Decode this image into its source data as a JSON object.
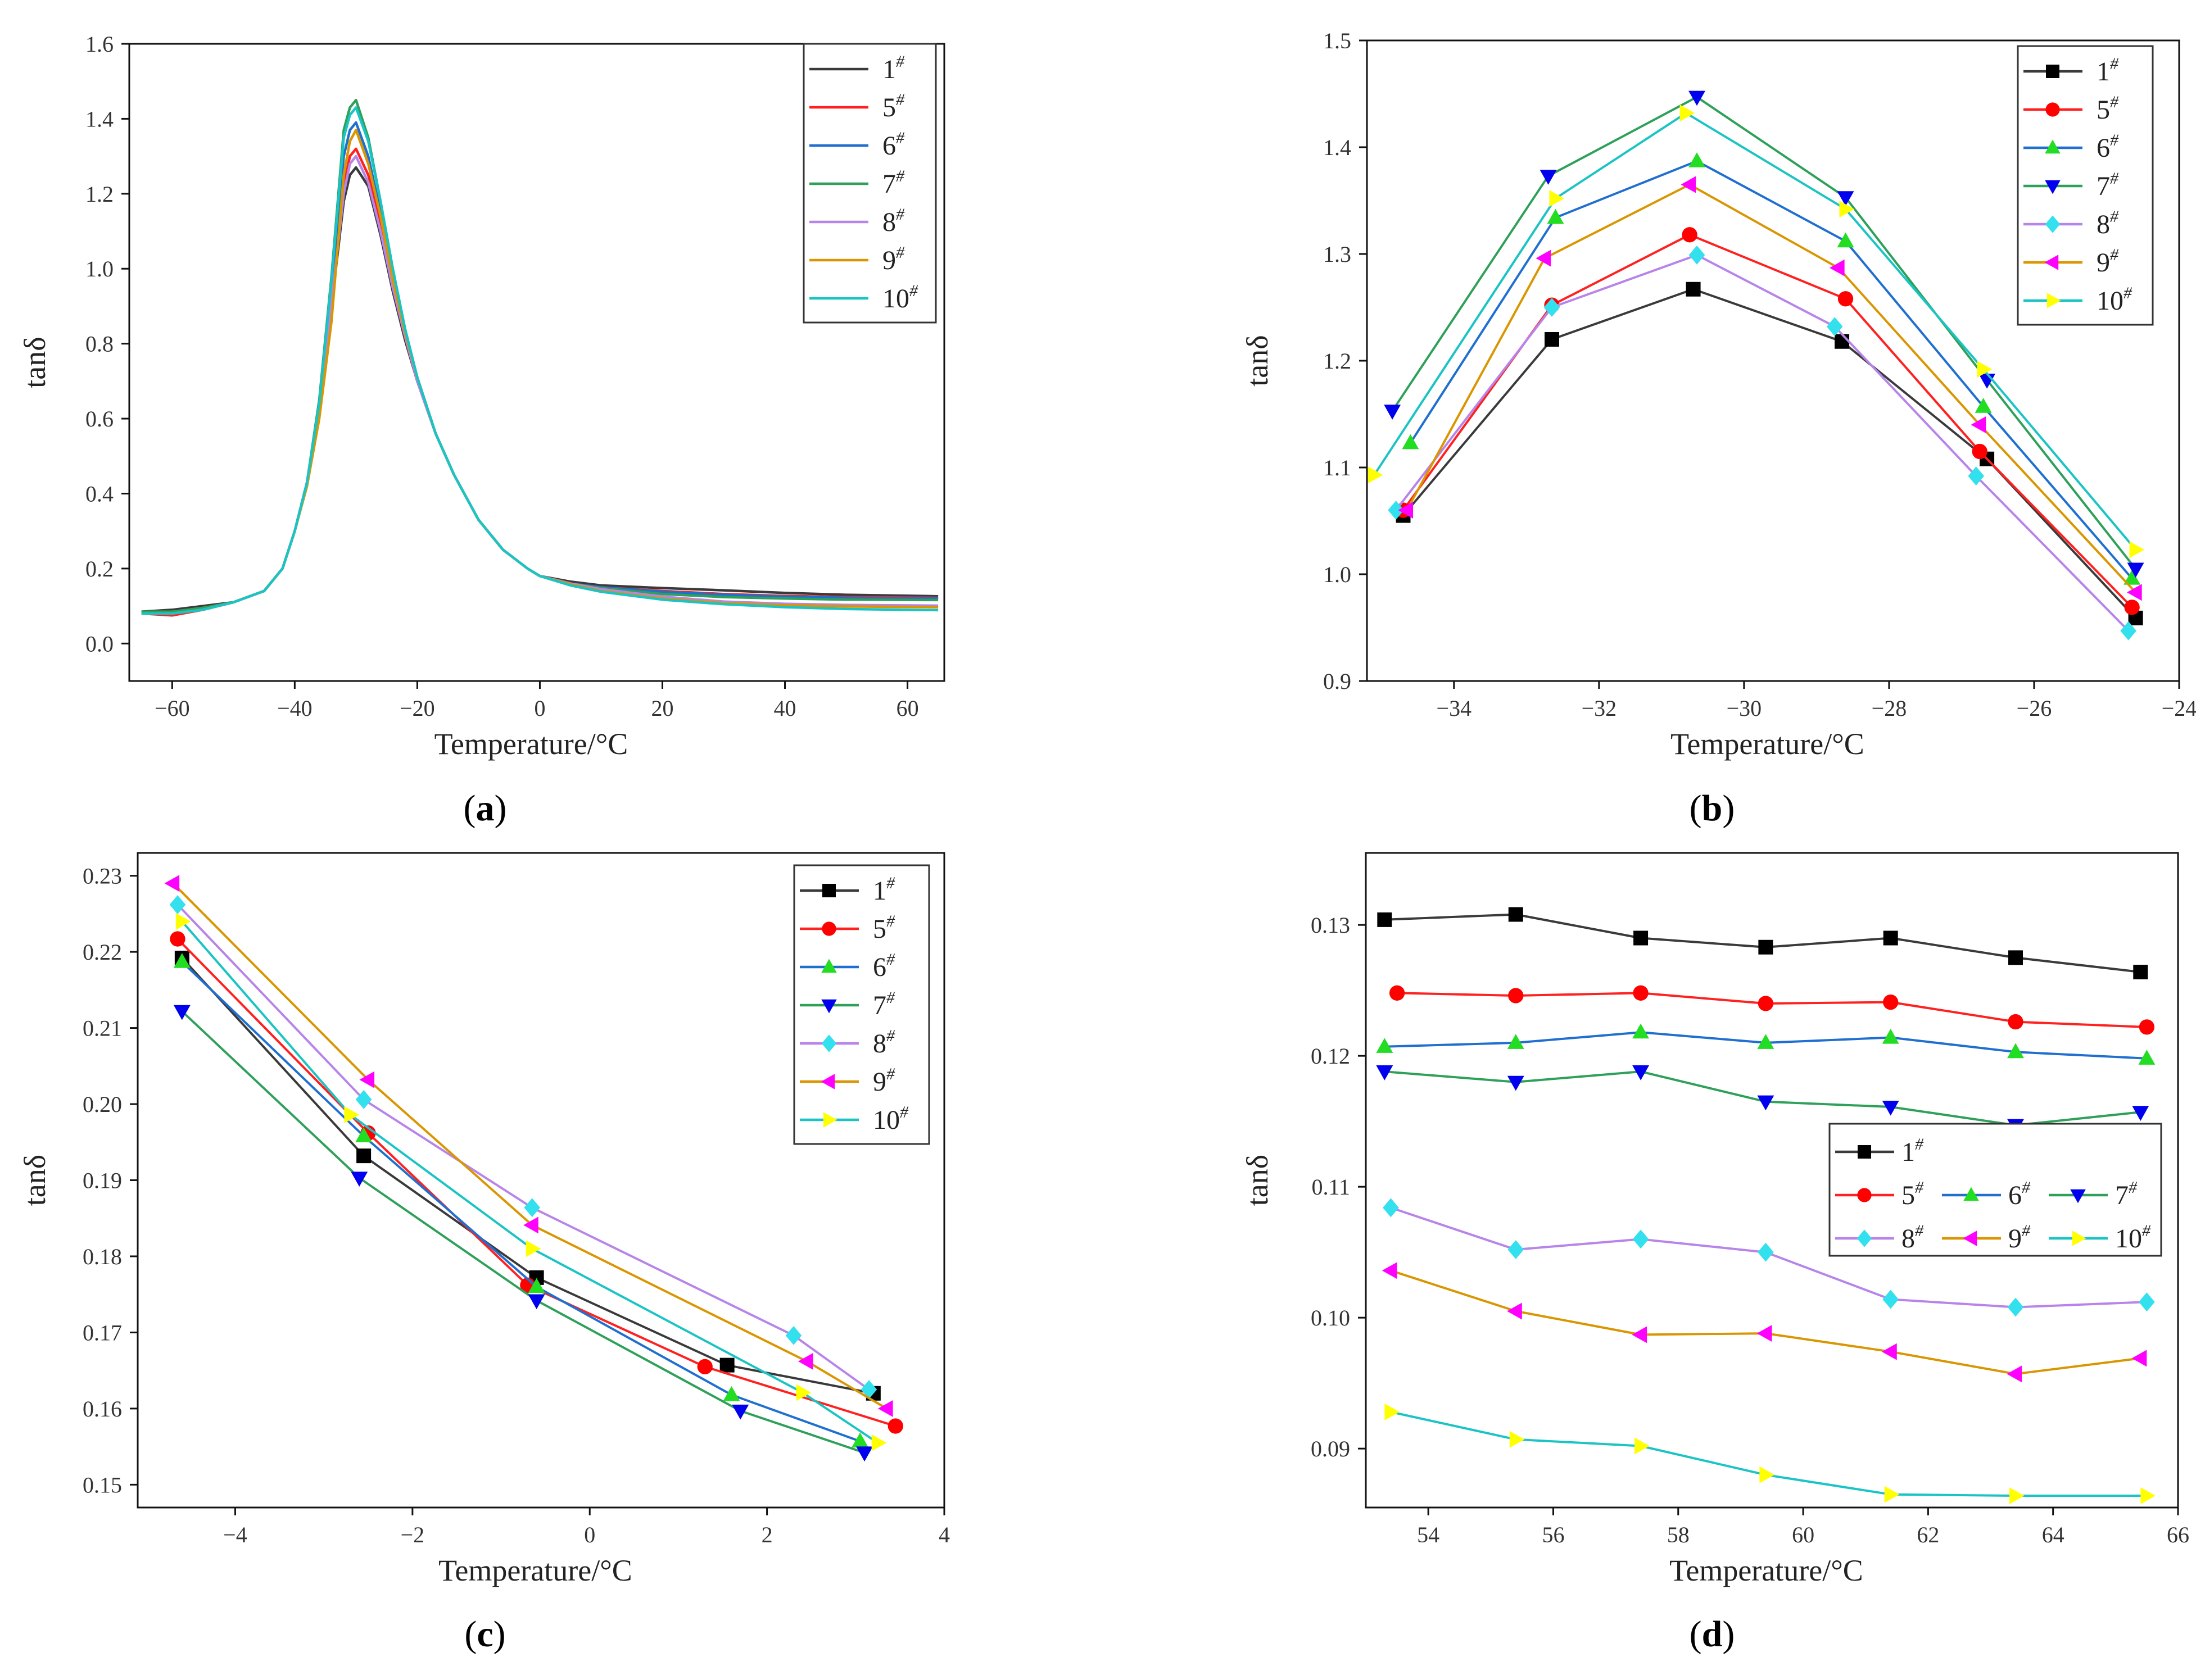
{
  "colors": {
    "s1": "#3a3a3a",
    "s5": "#ff2020",
    "s6": "#1f6fd0",
    "s7": "#2ea05a",
    "s8": "#b784ea",
    "s9": "#d99600",
    "s10": "#1bc4c4",
    "m1": "#000000",
    "m5": "#ff0000",
    "m6": "#22dd22",
    "m7": "#0000ee",
    "m8": "#33e0ee",
    "m9": "#ff00ff",
    "m10": "#ffff00"
  },
  "legend_names": [
    "1",
    "5",
    "6",
    "7",
    "8",
    "9",
    "10"
  ],
  "legend_sup": "#",
  "chart_data": [
    {
      "id": "a",
      "caption_open": "(",
      "caption_letter": "a",
      "caption_close": ")",
      "type": "line",
      "xlabel": "Temperature/°C",
      "ylabel": "tanδ",
      "xlim": [
        -67,
        66
      ],
      "ylim": [
        -0.1,
        1.6
      ],
      "xticks": [
        -60,
        -40,
        -20,
        0,
        20,
        40,
        60
      ],
      "xtick_labels": [
        "−60",
        "−40",
        "−20",
        "0",
        "20",
        "40",
        "60"
      ],
      "yticks": [
        0.0,
        0.2,
        0.4,
        0.6,
        0.8,
        1.0,
        1.2,
        1.4,
        1.6
      ],
      "ytick_labels": [
        "0.0",
        "0.2",
        "0.4",
        "0.6",
        "0.8",
        "1.0",
        "1.2",
        "1.4",
        "1.6"
      ],
      "legend": "top-right",
      "markers": false,
      "series": [
        {
          "name": "1",
          "x": [
            -65,
            -60,
            -55,
            -50,
            -45,
            -42,
            -40,
            -38,
            -36,
            -34,
            -32,
            -31,
            -30,
            -28,
            -26,
            -24,
            -22,
            -20,
            -17,
            -14,
            -10,
            -6,
            -2,
            0,
            5,
            10,
            20,
            30,
            40,
            50,
            65
          ],
          "y": [
            0.085,
            0.09,
            0.1,
            0.11,
            0.14,
            0.2,
            0.3,
            0.43,
            0.62,
            0.9,
            1.18,
            1.25,
            1.27,
            1.22,
            1.09,
            0.94,
            0.81,
            0.7,
            0.56,
            0.45,
            0.33,
            0.25,
            0.2,
            0.18,
            0.165,
            0.155,
            0.148,
            0.142,
            0.135,
            0.13,
            0.126
          ]
        },
        {
          "name": "5",
          "x": [
            -65,
            -60,
            -55,
            -50,
            -45,
            -42,
            -40,
            -38,
            -36,
            -34,
            -32,
            -31,
            -30,
            -28,
            -26,
            -24,
            -22,
            -20,
            -17,
            -14,
            -10,
            -6,
            -2,
            0,
            5,
            10,
            20,
            30,
            40,
            50,
            65
          ],
          "y": [
            0.08,
            0.075,
            0.09,
            0.11,
            0.14,
            0.2,
            0.3,
            0.43,
            0.63,
            0.92,
            1.22,
            1.3,
            1.32,
            1.25,
            1.12,
            0.96,
            0.82,
            0.7,
            0.56,
            0.45,
            0.33,
            0.25,
            0.2,
            0.18,
            0.16,
            0.15,
            0.14,
            0.132,
            0.127,
            0.124,
            0.122
          ]
        },
        {
          "name": "6",
          "x": [
            -65,
            -60,
            -55,
            -50,
            -45,
            -42,
            -40,
            -38,
            -36,
            -34,
            -32,
            -31,
            -30,
            -28,
            -26,
            -24,
            -22,
            -20,
            -17,
            -14,
            -10,
            -6,
            -2,
            0,
            5,
            10,
            20,
            30,
            40,
            50,
            65
          ],
          "y": [
            0.08,
            0.085,
            0.095,
            0.11,
            0.14,
            0.2,
            0.3,
            0.43,
            0.64,
            0.95,
            1.3,
            1.37,
            1.39,
            1.3,
            1.15,
            0.98,
            0.83,
            0.71,
            0.56,
            0.45,
            0.33,
            0.25,
            0.2,
            0.18,
            0.16,
            0.15,
            0.138,
            0.13,
            0.125,
            0.122,
            0.12
          ]
        },
        {
          "name": "7",
          "x": [
            -65,
            -60,
            -55,
            -50,
            -45,
            -42,
            -40,
            -38,
            -36,
            -34,
            -32,
            -31,
            -30,
            -28,
            -26,
            -24,
            -22,
            -20,
            -17,
            -14,
            -10,
            -6,
            -2,
            0,
            5,
            10,
            20,
            30,
            40,
            50,
            65
          ],
          "y": [
            0.085,
            0.085,
            0.095,
            0.11,
            0.14,
            0.2,
            0.3,
            0.43,
            0.65,
            0.98,
            1.37,
            1.43,
            1.45,
            1.35,
            1.18,
            1.0,
            0.84,
            0.71,
            0.56,
            0.45,
            0.33,
            0.25,
            0.2,
            0.18,
            0.16,
            0.148,
            0.132,
            0.124,
            0.12,
            0.117,
            0.116
          ]
        },
        {
          "name": "8",
          "x": [
            -65,
            -60,
            -55,
            -50,
            -45,
            -42,
            -40,
            -38,
            -36,
            -34,
            -32,
            -31,
            -30,
            -28,
            -26,
            -24,
            -22,
            -20,
            -17,
            -14,
            -10,
            -6,
            -2,
            0,
            5,
            10,
            20,
            30,
            40,
            50,
            65
          ],
          "y": [
            0.08,
            0.08,
            0.09,
            0.11,
            0.14,
            0.2,
            0.3,
            0.43,
            0.63,
            0.91,
            1.2,
            1.28,
            1.3,
            1.23,
            1.1,
            0.95,
            0.82,
            0.7,
            0.56,
            0.45,
            0.33,
            0.25,
            0.2,
            0.18,
            0.16,
            0.145,
            0.125,
            0.112,
            0.106,
            0.103,
            0.101
          ]
        },
        {
          "name": "9",
          "x": [
            -65,
            -60,
            -55,
            -50,
            -45,
            -42,
            -40,
            -38,
            -36,
            -34,
            -32,
            -31,
            -30,
            -28,
            -26,
            -24,
            -22,
            -20,
            -17,
            -14,
            -10,
            -6,
            -2,
            0,
            5,
            10,
            20,
            30,
            40,
            50,
            65
          ],
          "y": [
            0.08,
            0.08,
            0.09,
            0.11,
            0.14,
            0.2,
            0.3,
            0.42,
            0.6,
            0.86,
            1.25,
            1.34,
            1.37,
            1.28,
            1.14,
            0.97,
            0.83,
            0.71,
            0.56,
            0.45,
            0.33,
            0.25,
            0.2,
            0.18,
            0.158,
            0.14,
            0.12,
            0.108,
            0.102,
            0.099,
            0.097
          ]
        },
        {
          "name": "10",
          "x": [
            -65,
            -60,
            -55,
            -50,
            -45,
            -42,
            -40,
            -38,
            -36,
            -34,
            -32,
            -31,
            -30,
            -28,
            -26,
            -24,
            -22,
            -20,
            -17,
            -14,
            -10,
            -6,
            -2,
            0,
            5,
            10,
            20,
            30,
            40,
            50,
            65
          ],
          "y": [
            0.08,
            0.08,
            0.09,
            0.11,
            0.14,
            0.2,
            0.3,
            0.43,
            0.64,
            0.97,
            1.35,
            1.41,
            1.43,
            1.34,
            1.18,
            1.0,
            0.84,
            0.71,
            0.56,
            0.45,
            0.33,
            0.25,
            0.2,
            0.18,
            0.155,
            0.138,
            0.117,
            0.105,
            0.097,
            0.092,
            0.089
          ]
        }
      ]
    },
    {
      "id": "b",
      "caption_open": "(",
      "caption_letter": "b",
      "caption_close": ")",
      "type": "line",
      "xlabel": "Temperature/°C",
      "ylabel": "tanδ",
      "xlim": [
        -35.2,
        -24
      ],
      "ylim": [
        0.9,
        1.5
      ],
      "xticks": [
        -34,
        -32,
        -30,
        -28,
        -26,
        -24
      ],
      "xtick_labels": [
        "−34",
        "−32",
        "−30",
        "−28",
        "−26",
        "−24"
      ],
      "yticks": [
        0.9,
        1.0,
        1.1,
        1.2,
        1.3,
        1.4,
        1.5
      ],
      "ytick_labels": [
        "0.9",
        "1.0",
        "1.1",
        "1.2",
        "1.3",
        "1.4",
        "1.5"
      ],
      "legend": "top-right",
      "markers": true,
      "series": [
        {
          "name": "1",
          "x": [
            -34.7,
            -32.65,
            -30.7,
            -28.65,
            -26.65,
            -24.6
          ],
          "y": [
            1.055,
            1.22,
            1.267,
            1.218,
            1.108,
            0.959
          ]
        },
        {
          "name": "5",
          "x": [
            -34.7,
            -32.65,
            -30.75,
            -28.6,
            -26.75,
            -24.65
          ],
          "y": [
            1.06,
            1.252,
            1.318,
            1.258,
            1.115,
            0.969
          ]
        },
        {
          "name": "6",
          "x": [
            -34.6,
            -32.6,
            -30.65,
            -28.6,
            -26.7,
            -24.65
          ],
          "y": [
            1.123,
            1.334,
            1.387,
            1.312,
            1.157,
            0.996
          ]
        },
        {
          "name": "7",
          "x": [
            -34.85,
            -32.7,
            -30.65,
            -28.6,
            -26.65,
            -24.6
          ],
          "y": [
            1.153,
            1.373,
            1.447,
            1.353,
            1.182,
            1.005
          ]
        },
        {
          "name": "8",
          "x": [
            -34.8,
            -32.65,
            -30.65,
            -28.75,
            -26.8,
            -24.7
          ],
          "y": [
            1.06,
            1.25,
            1.299,
            1.232,
            1.092,
            0.947
          ]
        },
        {
          "name": "9",
          "x": [
            -34.65,
            -32.75,
            -30.75,
            -28.7,
            -26.75,
            -24.6
          ],
          "y": [
            1.06,
            1.296,
            1.365,
            1.287,
            1.14,
            0.983
          ]
        },
        {
          "name": "10",
          "x": [
            -35.1,
            -32.6,
            -30.8,
            -28.6,
            -26.7,
            -24.6
          ],
          "y": [
            1.093,
            1.352,
            1.432,
            1.342,
            1.192,
            1.023
          ]
        }
      ]
    },
    {
      "id": "c",
      "caption_open": "(",
      "caption_letter": "c",
      "caption_close": ")",
      "type": "line",
      "xlabel": "Temperature/°C",
      "ylabel": "tanδ",
      "xlim": [
        -5.1,
        4
      ],
      "ylim": [
        0.147,
        0.233
      ],
      "xticks": [
        -4,
        -2,
        0,
        2,
        4
      ],
      "xtick_labels": [
        "−4",
        "−2",
        "0",
        "2",
        "4"
      ],
      "yticks": [
        0.15,
        0.16,
        0.17,
        0.18,
        0.19,
        0.2,
        0.21,
        0.22,
        0.23
      ],
      "ytick_labels": [
        "0.15",
        "0.16",
        "0.17",
        "0.18",
        "0.19",
        "0.20",
        "0.21",
        "0.22",
        "0.23"
      ],
      "legend": "top-right",
      "markers": true,
      "series": [
        {
          "name": "1",
          "x": [
            -4.6,
            -2.55,
            -0.6,
            1.55,
            3.2
          ],
          "y": [
            0.2192,
            0.1932,
            0.1772,
            0.1657,
            0.162
          ]
        },
        {
          "name": "5",
          "x": [
            -4.65,
            -2.5,
            -0.7,
            1.3,
            3.45
          ],
          "y": [
            0.2217,
            0.1962,
            0.1762,
            0.1655,
            0.1577
          ]
        },
        {
          "name": "6",
          "x": [
            -4.6,
            -2.55,
            -0.6,
            1.6,
            3.05
          ],
          "y": [
            0.2187,
            0.1958,
            0.176,
            0.1618,
            0.1557
          ]
        },
        {
          "name": "7",
          "x": [
            -4.6,
            -2.6,
            -0.6,
            1.7,
            3.1
          ],
          "y": [
            0.2122,
            0.1903,
            0.1742,
            0.1597,
            0.1542
          ]
        },
        {
          "name": "8",
          "x": [
            -4.65,
            -2.55,
            -0.65,
            2.3,
            3.15
          ],
          "y": [
            0.2262,
            0.2006,
            0.1864,
            0.1696,
            0.1625
          ]
        },
        {
          "name": "9",
          "x": [
            -4.7,
            -2.5,
            -0.65,
            2.45,
            3.35
          ],
          "y": [
            0.229,
            0.2032,
            0.1841,
            0.1662,
            0.16
          ]
        },
        {
          "name": "10",
          "x": [
            -4.6,
            -2.7,
            -0.65,
            2.4,
            3.25
          ],
          "y": [
            0.224,
            0.1986,
            0.181,
            0.1621,
            0.1555
          ]
        }
      ]
    },
    {
      "id": "d",
      "caption_open": "(",
      "caption_letter": "d",
      "caption_close": ")",
      "type": "line",
      "xlabel": "Temperature/°C",
      "ylabel": "tanδ",
      "xlim": [
        53,
        66
      ],
      "ylim": [
        0.0855,
        0.1355
      ],
      "xticks": [
        54,
        56,
        58,
        60,
        62,
        64,
        66
      ],
      "xtick_labels": [
        "54",
        "56",
        "58",
        "60",
        "62",
        "64",
        "66"
      ],
      "yticks": [
        0.09,
        0.1,
        0.11,
        0.12,
        0.13
      ],
      "ytick_labels": [
        "0.09",
        "0.10",
        "0.11",
        "0.12",
        "0.13"
      ],
      "legend": "inside-right",
      "markers": true,
      "series": [
        {
          "name": "1",
          "x": [
            53.3,
            55.4,
            57.4,
            59.4,
            61.4,
            63.4,
            65.4
          ],
          "y": [
            0.1304,
            0.1308,
            0.129,
            0.1283,
            0.129,
            0.1275,
            0.1264
          ]
        },
        {
          "name": "5",
          "x": [
            53.5,
            55.4,
            57.4,
            59.4,
            61.4,
            63.4,
            65.5
          ],
          "y": [
            0.1248,
            0.1246,
            0.1248,
            0.124,
            0.1241,
            0.1226,
            0.1222
          ]
        },
        {
          "name": "6",
          "x": [
            53.3,
            55.4,
            57.4,
            59.4,
            61.4,
            63.4,
            65.5
          ],
          "y": [
            0.1207,
            0.121,
            0.1218,
            0.121,
            0.1214,
            0.1203,
            0.1198
          ]
        },
        {
          "name": "7",
          "x": [
            53.3,
            55.4,
            57.4,
            59.4,
            61.4,
            63.4,
            65.4
          ],
          "y": [
            0.1188,
            0.118,
            0.1188,
            0.1165,
            0.1161,
            0.1147,
            0.1157
          ]
        },
        {
          "name": "8",
          "x": [
            53.4,
            55.4,
            57.4,
            59.4,
            61.4,
            63.4,
            65.5
          ],
          "y": [
            0.1084,
            0.1052,
            0.106,
            0.105,
            0.1014,
            0.1008,
            0.1012
          ]
        },
        {
          "name": "9",
          "x": [
            53.4,
            55.4,
            57.4,
            59.4,
            61.4,
            63.4,
            65.4
          ],
          "y": [
            0.1036,
            0.1005,
            0.0987,
            0.0988,
            0.0974,
            0.0957,
            0.0969
          ]
        },
        {
          "name": "10",
          "x": [
            53.4,
            55.4,
            57.4,
            59.4,
            61.4,
            63.4,
            65.5
          ],
          "y": [
            0.0928,
            0.0907,
            0.0902,
            0.088,
            0.0865,
            0.0864,
            0.0864
          ]
        }
      ]
    }
  ]
}
